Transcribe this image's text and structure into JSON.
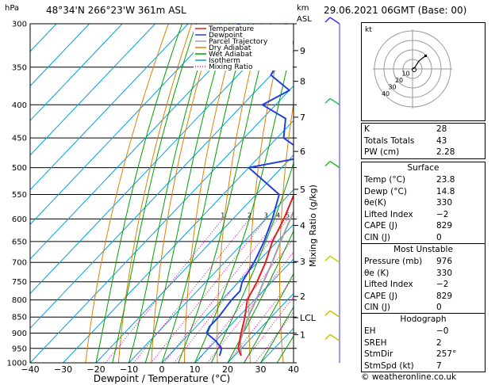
{
  "header": {
    "location": "48°34'N  266°23'W  361m  ASL",
    "datetime": "29.06.2021  06GMT  (Base: 00)",
    "hpa_label": "hPa",
    "km_label": "km",
    "asl_label": "ASL"
  },
  "chart_data": {
    "type": "skew-t",
    "xlabel": "Dewpoint / Temperature (°C)",
    "x_ticks": [
      -40,
      -30,
      -20,
      -10,
      0,
      10,
      20,
      30,
      40
    ],
    "pressure_levels": [
      300,
      350,
      400,
      450,
      500,
      550,
      600,
      650,
      700,
      750,
      800,
      850,
      900,
      950,
      1000
    ],
    "height_ticks": [
      {
        "label": "9",
        "p": 330
      },
      {
        "label": "8",
        "p": 368
      },
      {
        "label": "7",
        "p": 418
      },
      {
        "label": "6",
        "p": 472
      },
      {
        "label": "5",
        "p": 540
      },
      {
        "label": "4",
        "p": 614
      },
      {
        "label": "3",
        "p": 698
      },
      {
        "label": "2",
        "p": 790
      },
      {
        "label": "LCL",
        "p": 852
      },
      {
        "label": "1",
        "p": 905
      }
    ],
    "mixing_ratio_label": "Mixing Ratio (g/kg)",
    "mixing_ratio_values": [
      1,
      2,
      3,
      4,
      5,
      8,
      10,
      15,
      20,
      25
    ],
    "legend": [
      {
        "name": "Temperature",
        "color": "#e02020"
      },
      {
        "name": "Dewpoint",
        "color": "#2040e0"
      },
      {
        "name": "Parcel Trajectory",
        "color": "#a0a0a0"
      },
      {
        "name": "Dry Adiabat",
        "color": "#e08000"
      },
      {
        "name": "Wet Adiabat",
        "color": "#00a000"
      },
      {
        "name": "Isotherm",
        "color": "#00a0e0"
      },
      {
        "name": "Mixing Ratio",
        "color": "#e000a0"
      }
    ],
    "temperature": [
      {
        "p": 975,
        "t": 22
      },
      {
        "p": 950,
        "t": 19
      },
      {
        "p": 900,
        "t": 15.5
      },
      {
        "p": 850,
        "t": 12
      },
      {
        "p": 800,
        "t": 7.8
      },
      {
        "p": 750,
        "t": 5.5
      },
      {
        "p": 700,
        "t": 2.5
      },
      {
        "p": 650,
        "t": -1.5
      },
      {
        "p": 600,
        "t": -4.5
      },
      {
        "p": 550,
        "t": -8.5
      },
      {
        "p": 500,
        "t": -12.5
      },
      {
        "p": 450,
        "t": -17
      },
      {
        "p": 400,
        "t": -23.5
      },
      {
        "p": 350,
        "t": -30
      },
      {
        "p": 300,
        "t": -38.5
      }
    ],
    "dewpoint": [
      {
        "p": 975,
        "t": 15.5
      },
      {
        "p": 950,
        "t": 14
      },
      {
        "p": 925,
        "t": 10
      },
      {
        "p": 900,
        "t": 5
      },
      {
        "p": 880,
        "t": 4
      },
      {
        "p": 850,
        "t": 4
      },
      {
        "p": 800,
        "t": 3
      },
      {
        "p": 775,
        "t": 3
      },
      {
        "p": 750,
        "t": 1
      },
      {
        "p": 700,
        "t": -1
      },
      {
        "p": 650,
        "t": -4
      },
      {
        "p": 600,
        "t": -8
      },
      {
        "p": 550,
        "t": -13
      },
      {
        "p": 500,
        "t": -30
      },
      {
        "p": 480,
        "t": -15
      },
      {
        "p": 450,
        "t": -28
      },
      {
        "p": 420,
        "t": -33
      },
      {
        "p": 400,
        "t": -44
      },
      {
        "p": 380,
        "t": -40
      },
      {
        "p": 360,
        "t": -50
      },
      {
        "p": 340,
        "t": -52
      },
      {
        "p": 320,
        "t": -59
      },
      {
        "p": 300,
        "t": -75
      }
    ],
    "parcel": [
      {
        "p": 975,
        "t": 22
      },
      {
        "p": 925,
        "t": 17.5
      },
      {
        "p": 850,
        "t": 13
      },
      {
        "p": 800,
        "t": 10.5
      },
      {
        "p": 750,
        "t": 7.5
      },
      {
        "p": 700,
        "t": 4.5
      },
      {
        "p": 650,
        "t": 1
      },
      {
        "p": 600,
        "t": -2.5
      },
      {
        "p": 550,
        "t": -6.5
      },
      {
        "p": 500,
        "t": -11
      },
      {
        "p": 450,
        "t": -16
      },
      {
        "p": 400,
        "t": -22
      },
      {
        "p": 350,
        "t": -29.5
      },
      {
        "p": 300,
        "t": -39
      }
    ]
  },
  "hodograph": {
    "unit_label": "kt",
    "ring_labels": [
      "10",
      "20",
      "30",
      "40"
    ]
  },
  "indices": [
    {
      "label": "K",
      "value": "28"
    },
    {
      "label": "Totals Totals",
      "value": "43"
    },
    {
      "label": "PW (cm)",
      "value": "2.28"
    }
  ],
  "surface": {
    "title": "Surface",
    "rows": [
      {
        "label": "Temp (°C)",
        "value": "23.8"
      },
      {
        "label": "Dewp (°C)",
        "value": "14.8"
      },
      {
        "label": "θe(K)",
        "value": "330"
      },
      {
        "label": "Lifted Index",
        "value": "-2"
      },
      {
        "label": "CAPE (J)",
        "value": "829"
      },
      {
        "label": "CIN (J)",
        "value": "0"
      }
    ]
  },
  "most_unstable": {
    "title": "Most Unstable",
    "rows": [
      {
        "label": "Pressure (mb)",
        "value": "976"
      },
      {
        "label": "θe (K)",
        "value": "330"
      },
      {
        "label": "Lifted Index",
        "value": "-2"
      },
      {
        "label": "CAPE (J)",
        "value": "829"
      },
      {
        "label": "CIN (J)",
        "value": "0"
      }
    ]
  },
  "hodograph_table": {
    "title": "Hodograph",
    "rows": [
      {
        "label": "EH",
        "value": "-0"
      },
      {
        "label": "SREH",
        "value": "2"
      },
      {
        "label": "StmDir",
        "value": "257°"
      },
      {
        "label": "StmSpd (kt)",
        "value": "7"
      }
    ]
  },
  "footer": {
    "copyright": "© weatheronline.co.uk"
  }
}
